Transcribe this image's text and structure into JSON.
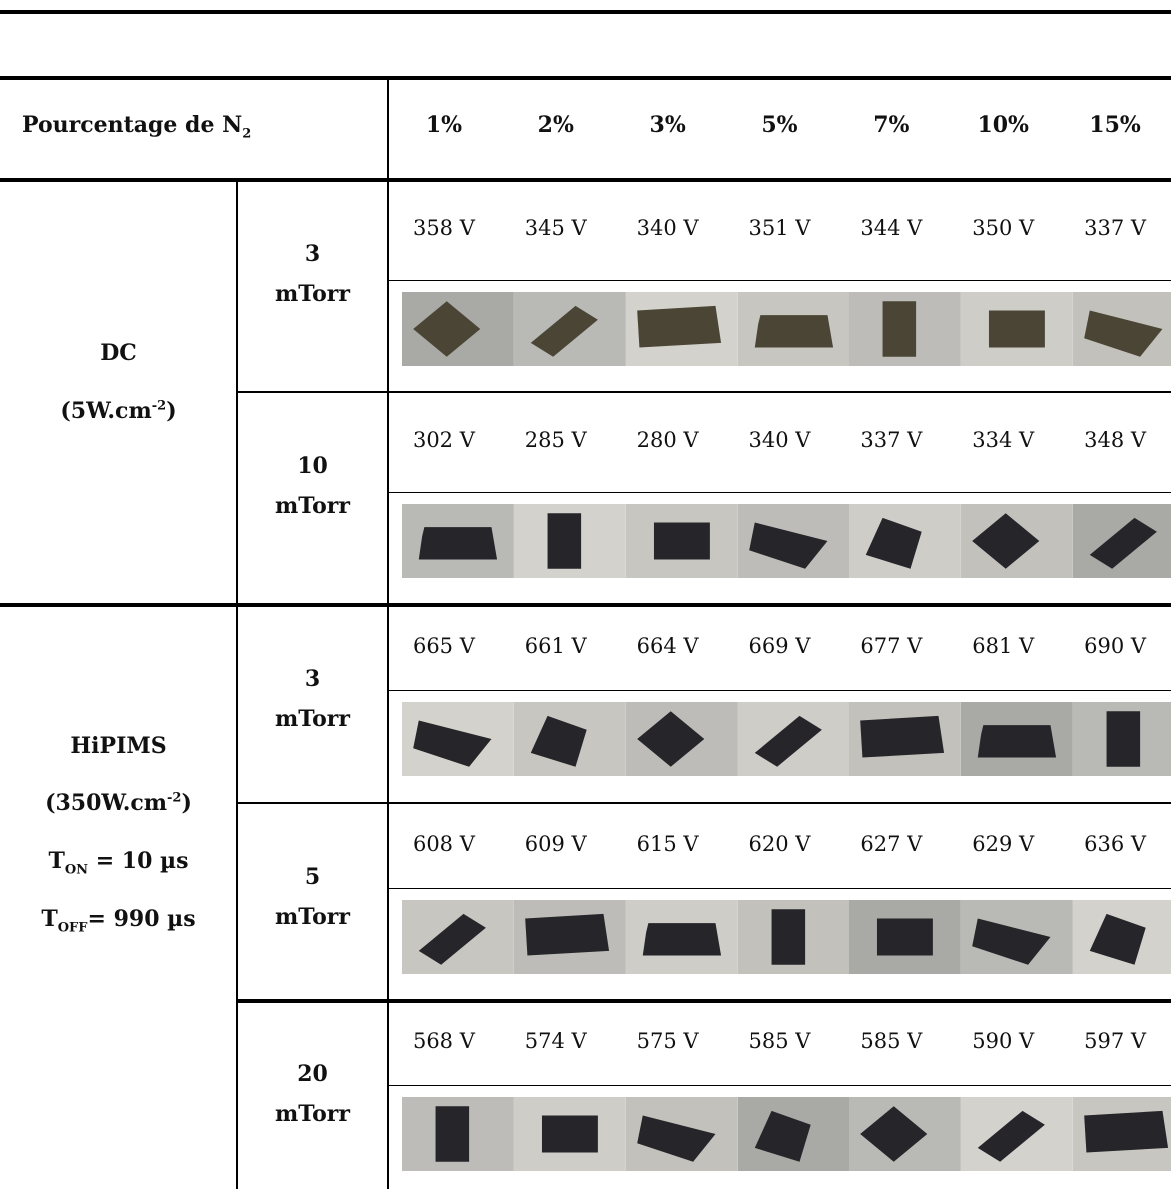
{
  "header": {
    "label": "Pourcentage de N",
    "label_sub": "2",
    "columns": [
      "1%",
      "2%",
      "3%",
      "5%",
      "7%",
      "10%",
      "15%"
    ]
  },
  "groups": [
    {
      "lines": [
        [
          {
            "text": "DC"
          }
        ],
        [
          {
            "text": "(5W.cm"
          },
          {
            "sup": "-2"
          },
          {
            "text": ")"
          }
        ]
      ],
      "rows": [
        {
          "pressure": "3",
          "unit": "mTorr",
          "voltages": [
            "358 V",
            "345 V",
            "340 V",
            "351 V",
            "344 V",
            "350 V",
            "337 V"
          ]
        },
        {
          "pressure": "10",
          "unit": "mTorr",
          "voltages": [
            "302 V",
            "285 V",
            "280 V",
            "340 V",
            "337 V",
            "334 V",
            "348 V"
          ]
        }
      ]
    },
    {
      "lines": [
        [
          {
            "text": "HiPIMS"
          }
        ],
        [
          {
            "text": "(350W.cm"
          },
          {
            "sup": "-2"
          },
          {
            "text": ")"
          }
        ],
        [
          {
            "text": "T"
          },
          {
            "sub": "ON"
          },
          {
            "text": " = 10 µs"
          }
        ],
        [
          {
            "text": "T"
          },
          {
            "sub": "OFF"
          },
          {
            "text": "= 990 µs"
          }
        ]
      ],
      "rows": [
        {
          "pressure": "3",
          "unit": "mTorr",
          "voltages": [
            "665 V",
            "661 V",
            "664 V",
            "669 V",
            "677 V",
            "681 V",
            "690 V"
          ]
        },
        {
          "pressure": "5",
          "unit": "mTorr",
          "voltages": [
            "608 V",
            "609 V",
            "615 V",
            "620 V",
            "627 V",
            "629 V",
            "636 V"
          ]
        },
        {
          "pressure": "20",
          "unit": "mTorr",
          "voltages": [
            "568 V",
            "574 V",
            "575 V",
            "585 V",
            "585 V",
            "590 V",
            "597 V"
          ]
        }
      ]
    }
  ]
}
